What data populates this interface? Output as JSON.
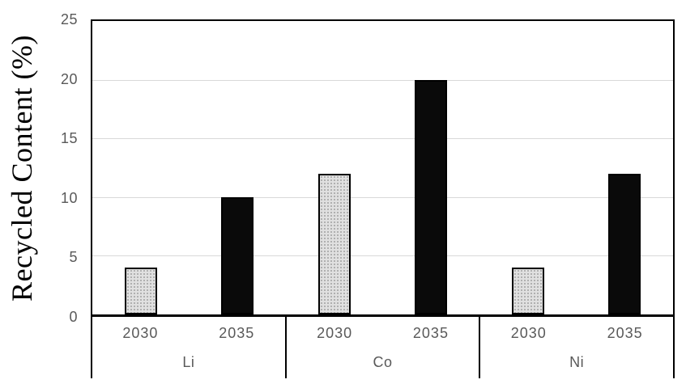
{
  "page": {
    "background": "#ffffff"
  },
  "chart_data": {
    "type": "bar",
    "title": "",
    "ylabel": "Recycled Content (%)",
    "xlabel": "",
    "ylim": [
      0,
      25
    ],
    "yticks": [
      25,
      20,
      15,
      10,
      5,
      0
    ],
    "gridlines_at": [
      20,
      15,
      10,
      5
    ],
    "grid": true,
    "legend_position": "none",
    "categories": [
      "Li",
      "Co",
      "Ni"
    ],
    "subcategories": [
      "2030",
      "2035"
    ],
    "series": [
      {
        "name": "2030",
        "values": [
          4,
          12,
          4
        ],
        "fill": "#e0e0e0",
        "pattern": "dotted",
        "border": "#000000"
      },
      {
        "name": "2035",
        "values": [
          10,
          20,
          12
        ],
        "fill": "#0a0a0a",
        "pattern": "solid",
        "border": "#000000"
      }
    ],
    "colors": {
      "axis_frame": "#000000",
      "gridline": "#d9d9d9",
      "tick_label": "#595959",
      "category_label": "#595959",
      "axis_title": "#000000",
      "dot_pattern": "#a0a0a0"
    }
  }
}
